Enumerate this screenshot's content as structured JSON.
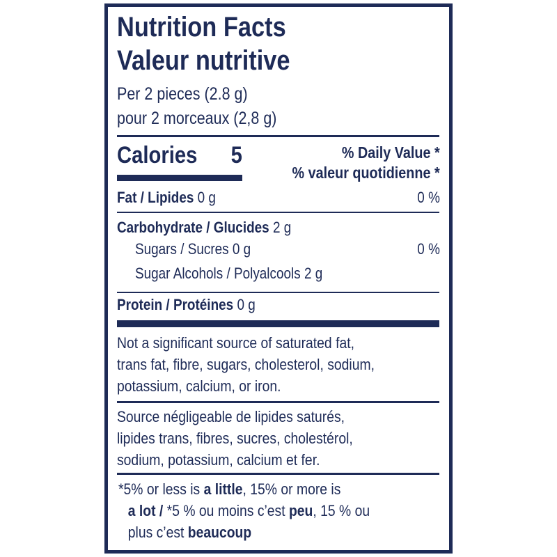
{
  "colors": {
    "ink": "#1e2b57",
    "background": "#ffffff"
  },
  "title": {
    "en": "Nutrition Facts",
    "fr": "Valeur nutritive"
  },
  "serving": {
    "en": "Per 2 pieces (2.8 g)",
    "fr": "pour 2 morceaux (2,8 g)"
  },
  "calories": {
    "label": "Calories",
    "value": "5"
  },
  "daily_value": {
    "en": "% Daily Value *",
    "fr": "% valeur quotidienne *"
  },
  "nutrients": [
    {
      "label": "Fat / Lipides",
      "amount": "0 g",
      "dv": "0 %"
    },
    {
      "label": "Carbohydrate / Glucides",
      "amount": "2 g"
    },
    {
      "label": "Sugars / Sucres",
      "amount": "0 g",
      "dv": "0 %"
    },
    {
      "label": "Sugar Alcohols / Polyalcools",
      "amount": "2 g"
    },
    {
      "label": "Protein / Protéines",
      "amount": "0 g"
    }
  ],
  "note_en": [
    "Not a significant source of saturated fat,",
    "trans fat, fibre, sugars, cholesterol, sodium,",
    "potassium, calcium, or iron."
  ],
  "note_fr": [
    "Source négligeable de lipides saturés,",
    "lipides trans, fibres, sucres, cholestérol,",
    "sodium, potassium, calcium et fer."
  ],
  "footnote": {
    "l1a": "*5% or less is ",
    "l1b": "a little",
    "l1c": ", 15% or more is",
    "l2a": "a lot / ",
    "l2b": "*5 % ou moins c’est ",
    "l2c": "peu",
    "l2d": ", 15 % ou",
    "l3a": "plus c’est ",
    "l3b": "beaucoup"
  }
}
